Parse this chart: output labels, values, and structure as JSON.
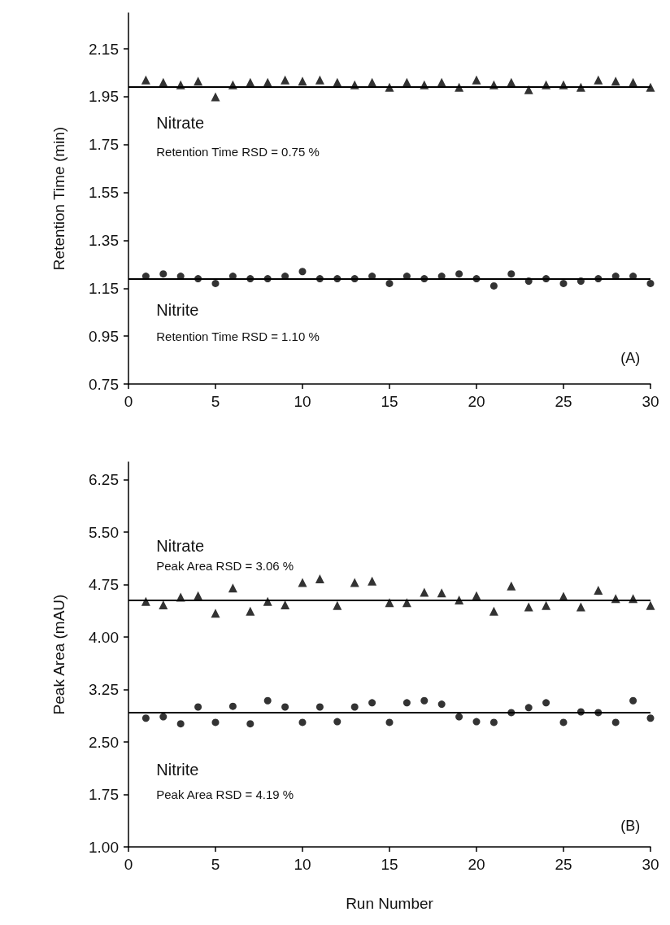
{
  "chart_data": [
    {
      "type": "scatter",
      "ylabel": "Retention Time (min)",
      "x": [
        1,
        2,
        3,
        4,
        5,
        6,
        7,
        8,
        9,
        10,
        11,
        12,
        13,
        14,
        15,
        16,
        17,
        18,
        19,
        20,
        21,
        22,
        23,
        24,
        25,
        26,
        27,
        28,
        29,
        30
      ],
      "xlim": [
        0,
        30
      ],
      "xticks": [
        0,
        5,
        10,
        15,
        20,
        25,
        30
      ],
      "ylim": [
        0.75,
        2.3
      ],
      "yticks": [
        0.75,
        0.95,
        1.15,
        1.35,
        1.55,
        1.75,
        1.95,
        2.15
      ],
      "series": [
        {
          "name": "Nitrate",
          "color": "#000000",
          "marker": "triangle",
          "values": [
            2.02,
            2.01,
            2.0,
            2.015,
            1.95,
            2.0,
            2.01,
            2.01,
            2.02,
            2.015,
            2.02,
            2.01,
            2.0,
            2.01,
            1.99,
            2.01,
            2.0,
            2.01,
            1.99,
            2.02,
            2.0,
            2.01,
            1.98,
            2.0,
            2.0,
            1.99,
            2.02,
            2.015,
            2.01,
            1.99
          ]
        },
        {
          "name": "Nitrite",
          "color": "#000000",
          "marker": "circle",
          "values": [
            1.2,
            1.21,
            1.2,
            1.19,
            1.17,
            1.2,
            1.19,
            1.19,
            1.2,
            1.22,
            1.19,
            1.19,
            1.19,
            1.2,
            1.17,
            1.2,
            1.19,
            1.2,
            1.21,
            1.19,
            1.16,
            1.21,
            1.18,
            1.19,
            1.17,
            1.18,
            1.19,
            1.2,
            1.2,
            1.17
          ]
        }
      ],
      "ref_lines": [
        {
          "axis": "y",
          "value": 1.99,
          "color": "#000000"
        },
        {
          "axis": "y",
          "value": 1.19,
          "color": "#000000"
        }
      ],
      "annotations": [
        "Retention Time RSD = 0.75 %",
        "Retention Time RSD = 1.10 %",
        "(A)"
      ]
    },
    {
      "type": "scatter",
      "ylabel": "Peak Area (mAU)",
      "xlabel": "Run Number",
      "x": [
        1,
        2,
        3,
        4,
        5,
        6,
        7,
        8,
        9,
        10,
        11,
        12,
        13,
        14,
        15,
        16,
        17,
        18,
        19,
        20,
        21,
        22,
        23,
        24,
        25,
        26,
        27,
        28,
        29,
        30
      ],
      "xlim": [
        0,
        30
      ],
      "xticks": [
        0,
        5,
        10,
        15,
        20,
        25,
        30
      ],
      "ylim": [
        1.0,
        6.5
      ],
      "yticks": [
        {
          "value": 1.0,
          "label": "1.00"
        },
        1.75,
        {
          "value": 2.5,
          "label": "2.50"
        },
        3.25,
        {
          "value": 4.0,
          "label": "4.00"
        },
        4.75,
        {
          "value": 5.5,
          "label": "5.50"
        },
        6.25
      ],
      "series": [
        {
          "name": "Nitrate",
          "color": "#000000",
          "marker": "triangle",
          "values": [
            4.51,
            4.46,
            4.57,
            4.59,
            4.34,
            4.7,
            4.37,
            4.51,
            4.46,
            4.78,
            4.83,
            4.45,
            4.78,
            4.8,
            4.49,
            4.49,
            4.64,
            4.63,
            4.53,
            4.59,
            4.37,
            4.73,
            4.43,
            4.45,
            4.58,
            4.43,
            4.67,
            4.55,
            4.55,
            4.45
          ]
        },
        {
          "name": "Nitrite",
          "color": "#000000",
          "marker": "circle",
          "values": [
            2.84,
            2.86,
            2.76,
            3.0,
            2.78,
            3.01,
            2.76,
            3.09,
            3.0,
            2.78,
            3.0,
            2.79,
            3.0,
            3.06,
            2.78,
            3.06,
            3.09,
            3.04,
            2.86,
            2.79,
            2.78,
            2.92,
            2.99,
            3.06,
            2.78,
            2.93,
            2.92,
            2.78,
            3.09,
            2.84
          ]
        }
      ],
      "ref_lines": [
        {
          "axis": "y",
          "value": 4.53,
          "color": "#000000"
        },
        {
          "axis": "y",
          "value": 2.92,
          "color": "#000000"
        }
      ],
      "annotations": [
        "Peak Area RSD = 3.06 %",
        "Peak Area RSD = 4.19 %",
        "(B)"
      ]
    }
  ]
}
